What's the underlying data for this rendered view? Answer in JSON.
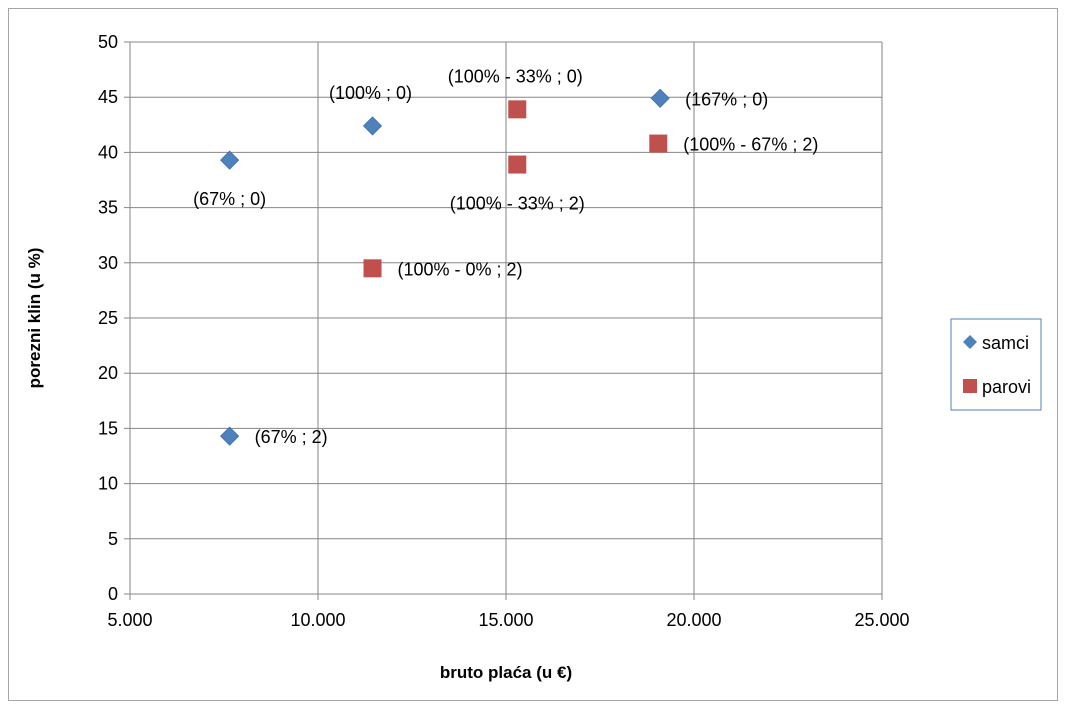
{
  "chart_data": {
    "type": "scatter",
    "title": "",
    "xlabel": "bruto plaća (u €)",
    "ylabel": "porezni klin (u %)",
    "xlim": [
      5000,
      25000
    ],
    "ylim": [
      0,
      50
    ],
    "x_ticks": [
      5000,
      10000,
      15000,
      20000,
      25000
    ],
    "x_tick_labels": [
      "5.000",
      "10.000",
      "15.000",
      "20.000",
      "25.000"
    ],
    "y_ticks": [
      0,
      5,
      10,
      15,
      20,
      25,
      30,
      35,
      40,
      45,
      50
    ],
    "y_tick_labels": [
      "0",
      "5",
      "10",
      "15",
      "20",
      "25",
      "30",
      "35",
      "40",
      "45",
      "50"
    ],
    "grid": true,
    "legend_position": "right",
    "series": [
      {
        "name": "samci",
        "marker": "diamond",
        "color": "#4f81bd",
        "points": [
          {
            "x": 7650,
            "y": 39.3,
            "label": "(67% ; 0)",
            "label_pos": "below"
          },
          {
            "x": 7650,
            "y": 14.3,
            "label": "(67% ; 2)",
            "label_pos": "right"
          },
          {
            "x": 11450,
            "y": 42.4,
            "label": "(100% ; 0)",
            "label_pos": "above"
          },
          {
            "x": 19100,
            "y": 44.9,
            "label": "(167% ; 0)",
            "label_pos": "right"
          }
        ]
      },
      {
        "name": "parovi",
        "marker": "square",
        "color": "#c0504d",
        "points": [
          {
            "x": 11450,
            "y": 29.5,
            "label": "(100% - 0% ; 2)",
            "label_pos": "right"
          },
          {
            "x": 15300,
            "y": 43.9,
            "label": "(100% - 33% ; 0)",
            "label_pos": "above"
          },
          {
            "x": 15300,
            "y": 38.9,
            "label": "(100% - 33% ; 2)",
            "label_pos": "below"
          },
          {
            "x": 19050,
            "y": 40.8,
            "label": "(100% - 67% ; 2)",
            "label_pos": "right"
          }
        ]
      }
    ]
  },
  "legend": {
    "items": [
      {
        "label": "samci",
        "marker": "diamond",
        "color": "#4f81bd"
      },
      {
        "label": "parovi",
        "marker": "square",
        "color": "#c0504d"
      }
    ]
  }
}
